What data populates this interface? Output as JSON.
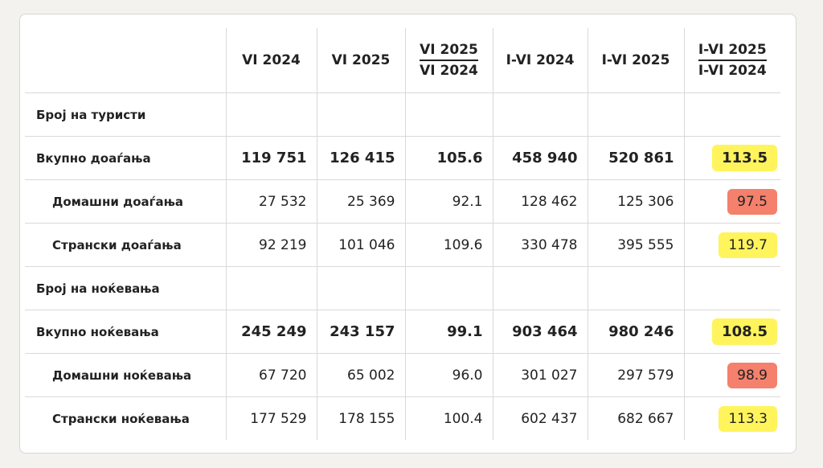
{
  "table": {
    "columns": [
      "VI 2024",
      "VI 2025",
      {
        "numerator": "VI 2025",
        "denominator": "VI 2024"
      },
      "I-VI 2024",
      "I-VI 2025",
      {
        "numerator": "I-VI 2025",
        "denominator": "I-VI 2024"
      }
    ],
    "sections": [
      {
        "title": "Број на туристи",
        "rows": [
          {
            "label": "Вкупно доаѓања",
            "bold": true,
            "values": [
              "119 751",
              "126 415",
              "105.6",
              "458 940",
              "520 861",
              "113.5"
            ],
            "highlight": "#fff45c"
          },
          {
            "label": "Домашни доаѓања",
            "bold": false,
            "values": [
              "27 532",
              "25 369",
              "92.1",
              "128 462",
              "125 306",
              "97.5"
            ],
            "highlight": "#f5806c"
          },
          {
            "label": "Странски доаѓања",
            "bold": false,
            "values": [
              "92 219",
              "101 046",
              "109.6",
              "330 478",
              "395 555",
              "119.7"
            ],
            "highlight": "#fff45c"
          }
        ]
      },
      {
        "title": "Број на ноќевања",
        "rows": [
          {
            "label": "Вкупно ноќевања",
            "bold": true,
            "values": [
              "245 249",
              "243 157",
              "99.1",
              "903 464",
              "980 246",
              "108.5"
            ],
            "highlight": "#fff45c"
          },
          {
            "label": "Домашни ноќевања",
            "bold": false,
            "values": [
              "67 720",
              "65 002",
              "96.0",
              "301 027",
              "297 579",
              "98.9"
            ],
            "highlight": "#f5806c"
          },
          {
            "label": "Странски ноќевања",
            "bold": false,
            "values": [
              "177 529",
              "178 155",
              "100.4",
              "602 437",
              "682 667",
              "113.3"
            ],
            "highlight": "#fff45c"
          }
        ]
      }
    ]
  }
}
